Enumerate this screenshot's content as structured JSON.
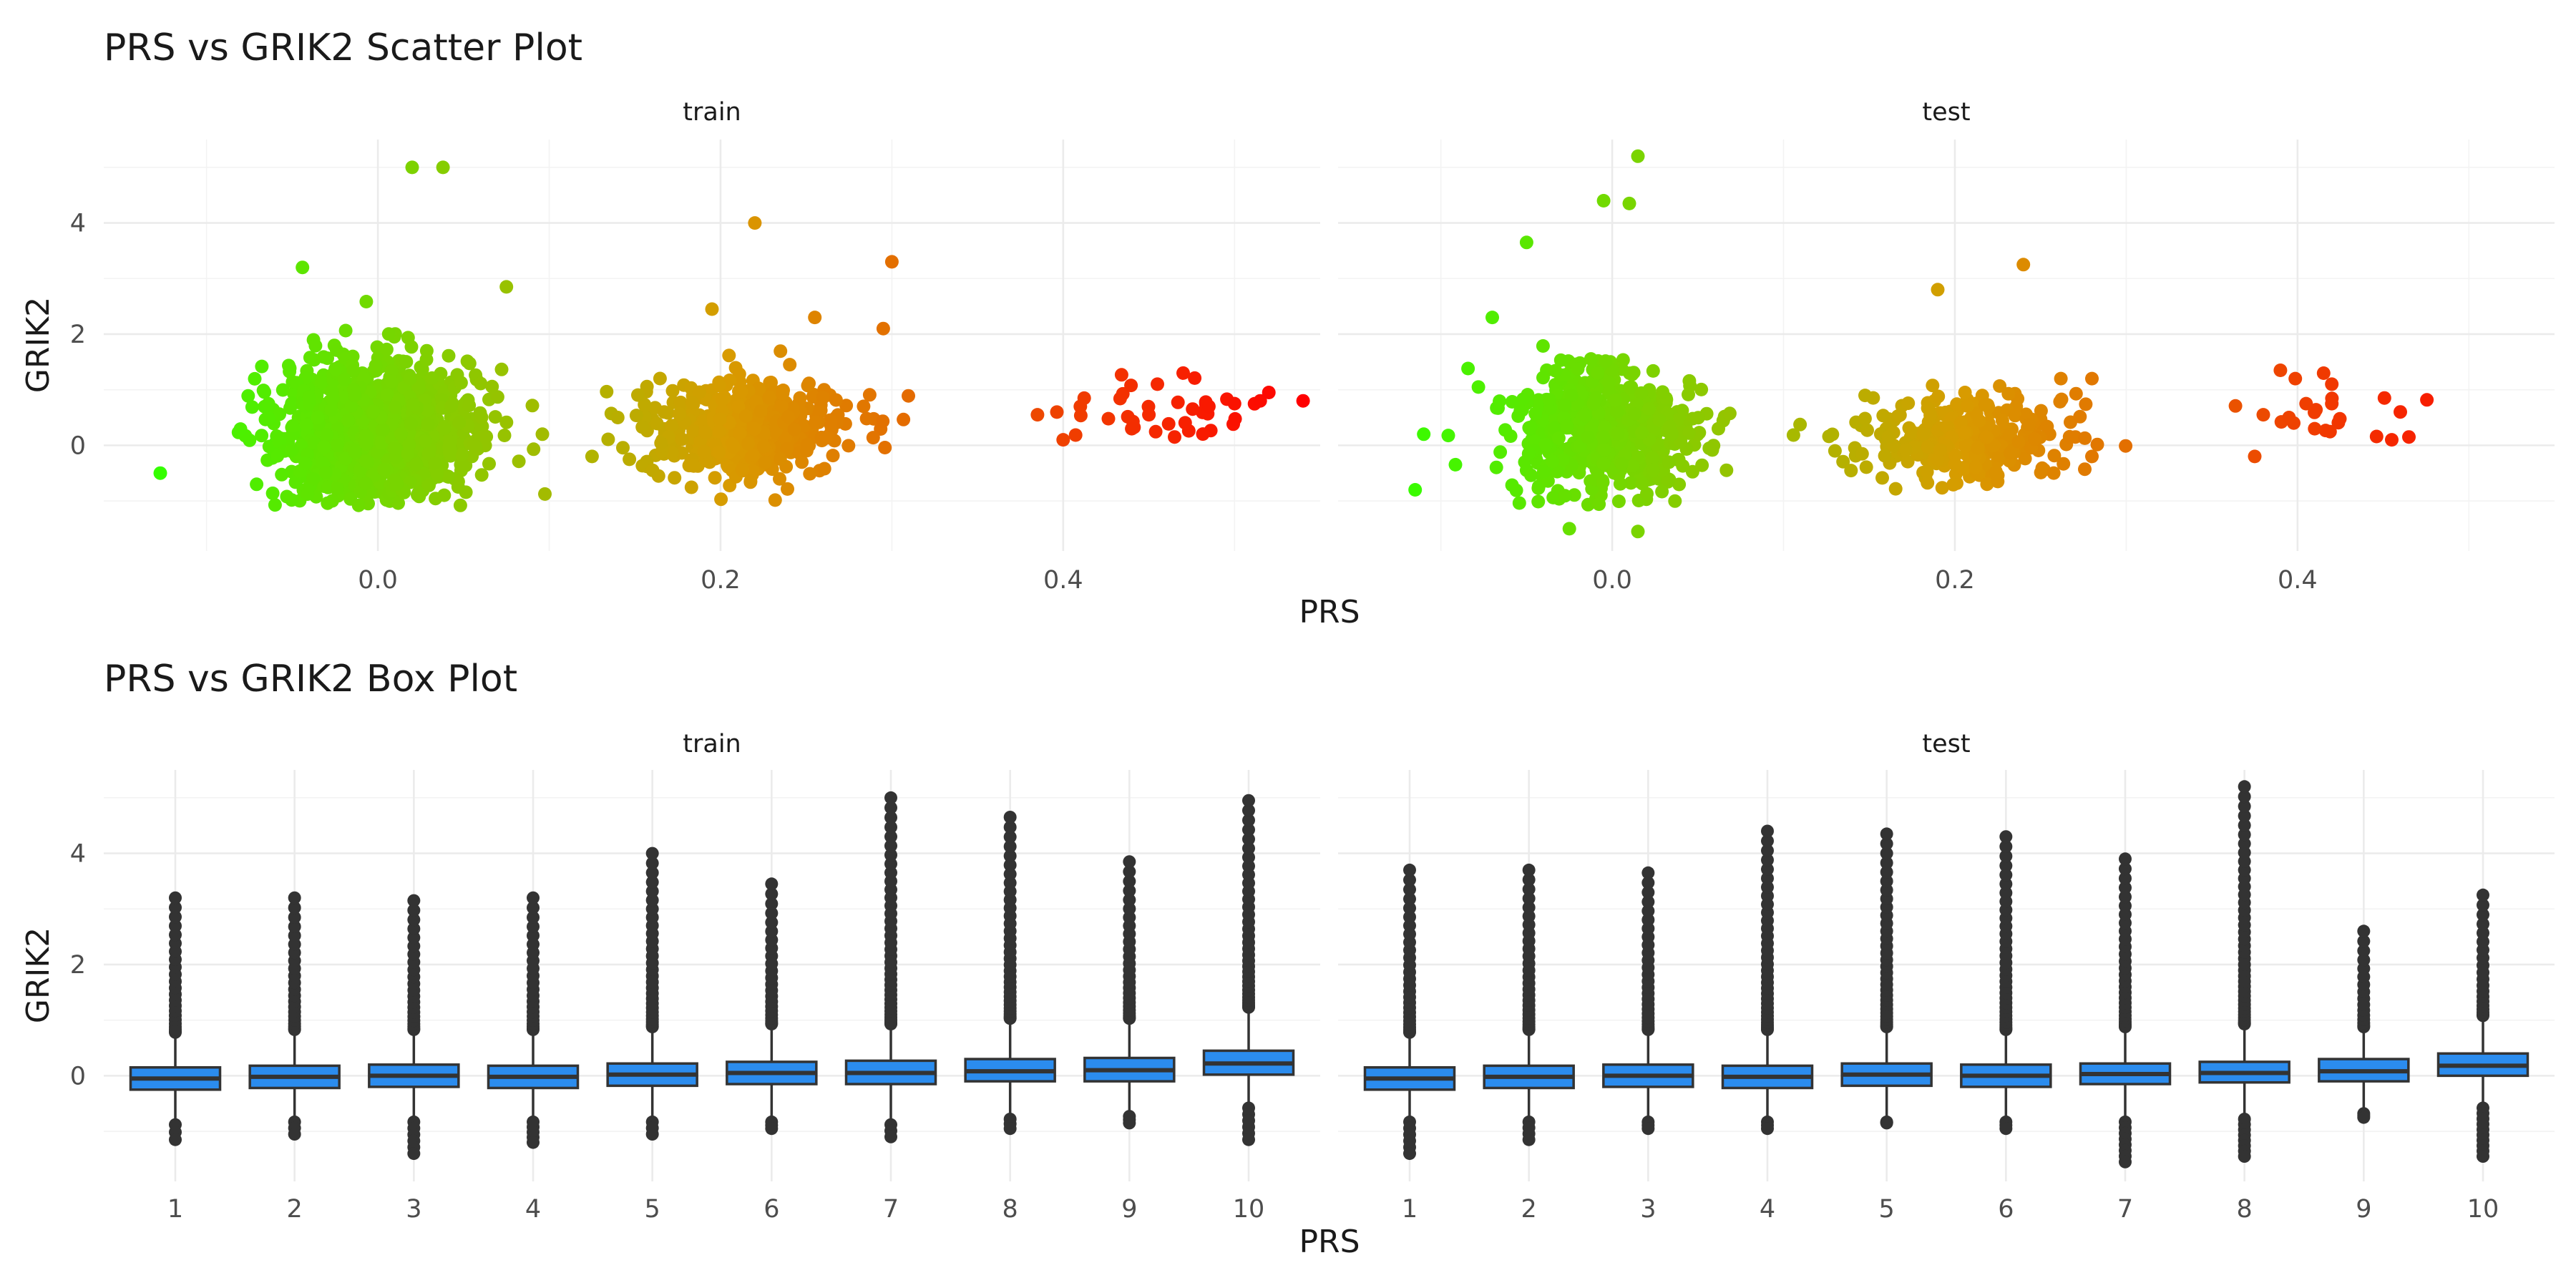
{
  "colors": {
    "scatter_low": "#33ff00",
    "scatter_mid": "#d89b00",
    "scatter_high": "#ff0000",
    "box_fill": "#2b8cee",
    "box_line": "#333333"
  },
  "chart_data": [
    {
      "type": "scatter",
      "title": "PRS vs GRIK2 Scatter Plot",
      "xlabel": "PRS",
      "ylabel": "GRIK2",
      "facets": [
        "train",
        "test"
      ],
      "xlim": [
        -0.16,
        0.55
      ],
      "ylim": [
        -1.9,
        5.5
      ],
      "xticks": [
        0.0,
        0.2,
        0.4
      ],
      "xtick_labels": [
        "0.0",
        "0.2",
        "0.4"
      ],
      "yticks": [
        0,
        2,
        4
      ],
      "ytick_labels": [
        "0",
        "2",
        "4"
      ],
      "grid": true,
      "color_by": "PRS",
      "clusters": {
        "train": [
          {
            "x_mean": 0.0,
            "x_sd": 0.028,
            "y_mean": 0.25,
            "y_sd": 0.6,
            "n": 1200
          },
          {
            "x_mean": 0.215,
            "x_sd": 0.03,
            "y_mean": 0.3,
            "y_sd": 0.42,
            "n": 500
          },
          {
            "x_mean": 0.455,
            "x_sd": 0.035,
            "y_mean": 0.55,
            "y_sd": 0.28,
            "n": 30
          }
        ],
        "test": [
          {
            "x_mean": -0.005,
            "x_sd": 0.027,
            "y_mean": 0.25,
            "y_sd": 0.6,
            "n": 600
          },
          {
            "x_mean": 0.205,
            "x_sd": 0.03,
            "y_mean": 0.15,
            "y_sd": 0.38,
            "n": 300
          },
          {
            "x_mean": 0.415,
            "x_sd": 0.025,
            "y_mean": 0.55,
            "y_sd": 0.35,
            "n": 15
          }
        ]
      },
      "points": {
        "train": [
          {
            "x": -0.127,
            "y": -0.5
          },
          {
            "x": 0.02,
            "y": 5.0
          },
          {
            "x": 0.038,
            "y": 5.0
          },
          {
            "x": -0.044,
            "y": 3.2
          },
          {
            "x": 0.075,
            "y": 2.85
          },
          {
            "x": 0.096,
            "y": 0.2
          },
          {
            "x": 0.22,
            "y": 4.0
          },
          {
            "x": 0.3,
            "y": 3.3
          },
          {
            "x": 0.295,
            "y": 2.1
          },
          {
            "x": 0.255,
            "y": 2.3
          },
          {
            "x": 0.195,
            "y": 2.45
          },
          {
            "x": 0.14,
            "y": 0.5
          },
          {
            "x": 0.125,
            "y": -0.2
          },
          {
            "x": 0.385,
            "y": 0.55
          },
          {
            "x": 0.4,
            "y": 0.1
          },
          {
            "x": 0.41,
            "y": 0.7
          },
          {
            "x": 0.44,
            "y": 0.3
          },
          {
            "x": 0.455,
            "y": 1.1
          },
          {
            "x": 0.47,
            "y": 1.3
          },
          {
            "x": 0.485,
            "y": 0.7
          },
          {
            "x": 0.5,
            "y": 0.75
          },
          {
            "x": 0.515,
            "y": 0.8
          },
          {
            "x": 0.52,
            "y": 0.95
          },
          {
            "x": 0.54,
            "y": 0.8
          },
          {
            "x": 0.465,
            "y": 0.15
          },
          {
            "x": 0.45,
            "y": 0.55
          }
        ],
        "test": [
          {
            "x": -0.115,
            "y": -0.8
          },
          {
            "x": -0.11,
            "y": 0.2
          },
          {
            "x": 0.015,
            "y": 5.2
          },
          {
            "x": -0.005,
            "y": 4.4
          },
          {
            "x": 0.01,
            "y": 4.35
          },
          {
            "x": -0.05,
            "y": 3.65
          },
          {
            "x": -0.07,
            "y": 2.3
          },
          {
            "x": 0.015,
            "y": -1.55
          },
          {
            "x": -0.025,
            "y": -1.5
          },
          {
            "x": 0.062,
            "y": 0.3
          },
          {
            "x": 0.24,
            "y": 3.25
          },
          {
            "x": 0.19,
            "y": 2.8
          },
          {
            "x": 0.13,
            "y": -0.1
          },
          {
            "x": 0.28,
            "y": 1.2
          },
          {
            "x": 0.28,
            "y": -0.2
          },
          {
            "x": 0.225,
            "y": -0.65
          },
          {
            "x": 0.375,
            "y": -0.2
          },
          {
            "x": 0.38,
            "y": 0.55
          },
          {
            "x": 0.39,
            "y": 1.35
          },
          {
            "x": 0.395,
            "y": 0.5
          },
          {
            "x": 0.405,
            "y": 0.75
          },
          {
            "x": 0.41,
            "y": 0.3
          },
          {
            "x": 0.42,
            "y": 1.1
          },
          {
            "x": 0.42,
            "y": 0.75
          },
          {
            "x": 0.455,
            "y": 0.1
          },
          {
            "x": 0.46,
            "y": 0.6
          },
          {
            "x": 0.465,
            "y": 0.15
          }
        ]
      }
    },
    {
      "type": "box",
      "title": "PRS vs GRIK2 Box Plot",
      "xlabel": "PRS",
      "ylabel": "GRIK2",
      "facets": [
        "train",
        "test"
      ],
      "categories": [
        "1",
        "2",
        "3",
        "4",
        "5",
        "6",
        "7",
        "8",
        "9",
        "10"
      ],
      "ylim": [
        -1.9,
        5.5
      ],
      "yticks": [
        0,
        2,
        4
      ],
      "ytick_labels": [
        "0",
        "2",
        "4"
      ],
      "grid": true,
      "boxes": {
        "train": [
          {
            "q1": -0.25,
            "median": -0.05,
            "q3": 0.15,
            "whisker_low": -0.8,
            "whisker_high": 0.7,
            "outlier_max": 3.2,
            "outlier_min": -1.15
          },
          {
            "q1": -0.22,
            "median": -0.02,
            "q3": 0.18,
            "whisker_low": -0.75,
            "whisker_high": 0.75,
            "outlier_max": 3.2,
            "outlier_min": -1.05
          },
          {
            "q1": -0.2,
            "median": 0.0,
            "q3": 0.2,
            "whisker_low": -0.75,
            "whisker_high": 0.75,
            "outlier_max": 3.15,
            "outlier_min": -1.4
          },
          {
            "q1": -0.22,
            "median": -0.02,
            "q3": 0.18,
            "whisker_low": -0.75,
            "whisker_high": 0.75,
            "outlier_max": 3.2,
            "outlier_min": -1.2
          },
          {
            "q1": -0.18,
            "median": 0.02,
            "q3": 0.22,
            "whisker_low": -0.75,
            "whisker_high": 0.8,
            "outlier_max": 4.0,
            "outlier_min": -1.05
          },
          {
            "q1": -0.15,
            "median": 0.05,
            "q3": 0.25,
            "whisker_low": -0.75,
            "whisker_high": 0.85,
            "outlier_max": 3.45,
            "outlier_min": -0.95
          },
          {
            "q1": -0.15,
            "median": 0.05,
            "q3": 0.27,
            "whisker_low": -0.8,
            "whisker_high": 0.85,
            "outlier_max": 5.0,
            "outlier_min": -1.1
          },
          {
            "q1": -0.1,
            "median": 0.08,
            "q3": 0.3,
            "whisker_low": -0.7,
            "whisker_high": 0.95,
            "outlier_max": 4.65,
            "outlier_min": -0.95
          },
          {
            "q1": -0.1,
            "median": 0.1,
            "q3": 0.32,
            "whisker_low": -0.65,
            "whisker_high": 0.95,
            "outlier_max": 3.85,
            "outlier_min": -0.85
          },
          {
            "q1": 0.02,
            "median": 0.22,
            "q3": 0.45,
            "whisker_low": -0.5,
            "whisker_high": 1.15,
            "outlier_max": 4.95,
            "outlier_min": -1.15
          }
        ],
        "test": [
          {
            "q1": -0.25,
            "median": -0.05,
            "q3": 0.15,
            "whisker_low": -0.75,
            "whisker_high": 0.7,
            "outlier_max": 3.7,
            "outlier_min": -1.4
          },
          {
            "q1": -0.22,
            "median": -0.02,
            "q3": 0.18,
            "whisker_low": -0.75,
            "whisker_high": 0.75,
            "outlier_max": 3.7,
            "outlier_min": -1.15
          },
          {
            "q1": -0.2,
            "median": 0.0,
            "q3": 0.2,
            "whisker_low": -0.75,
            "whisker_high": 0.75,
            "outlier_max": 3.65,
            "outlier_min": -0.95
          },
          {
            "q1": -0.22,
            "median": -0.02,
            "q3": 0.18,
            "whisker_low": -0.75,
            "whisker_high": 0.75,
            "outlier_max": 4.4,
            "outlier_min": -0.95
          },
          {
            "q1": -0.18,
            "median": 0.02,
            "q3": 0.22,
            "whisker_low": -0.75,
            "whisker_high": 0.8,
            "outlier_max": 4.35,
            "outlier_min": -0.85
          },
          {
            "q1": -0.2,
            "median": 0.0,
            "q3": 0.2,
            "whisker_low": -0.75,
            "whisker_high": 0.75,
            "outlier_max": 4.3,
            "outlier_min": -0.95
          },
          {
            "q1": -0.15,
            "median": 0.03,
            "q3": 0.22,
            "whisker_low": -0.75,
            "whisker_high": 0.8,
            "outlier_max": 3.9,
            "outlier_min": -1.55
          },
          {
            "q1": -0.12,
            "median": 0.05,
            "q3": 0.25,
            "whisker_low": -0.7,
            "whisker_high": 0.85,
            "outlier_max": 5.2,
            "outlier_min": -1.45
          },
          {
            "q1": -0.1,
            "median": 0.08,
            "q3": 0.3,
            "whisker_low": -0.6,
            "whisker_high": 0.8,
            "outlier_max": 2.6,
            "outlier_min": -0.75
          },
          {
            "q1": 0.0,
            "median": 0.18,
            "q3": 0.4,
            "whisker_low": -0.5,
            "whisker_high": 1.0,
            "outlier_max": 3.25,
            "outlier_min": -1.45
          }
        ]
      }
    }
  ]
}
